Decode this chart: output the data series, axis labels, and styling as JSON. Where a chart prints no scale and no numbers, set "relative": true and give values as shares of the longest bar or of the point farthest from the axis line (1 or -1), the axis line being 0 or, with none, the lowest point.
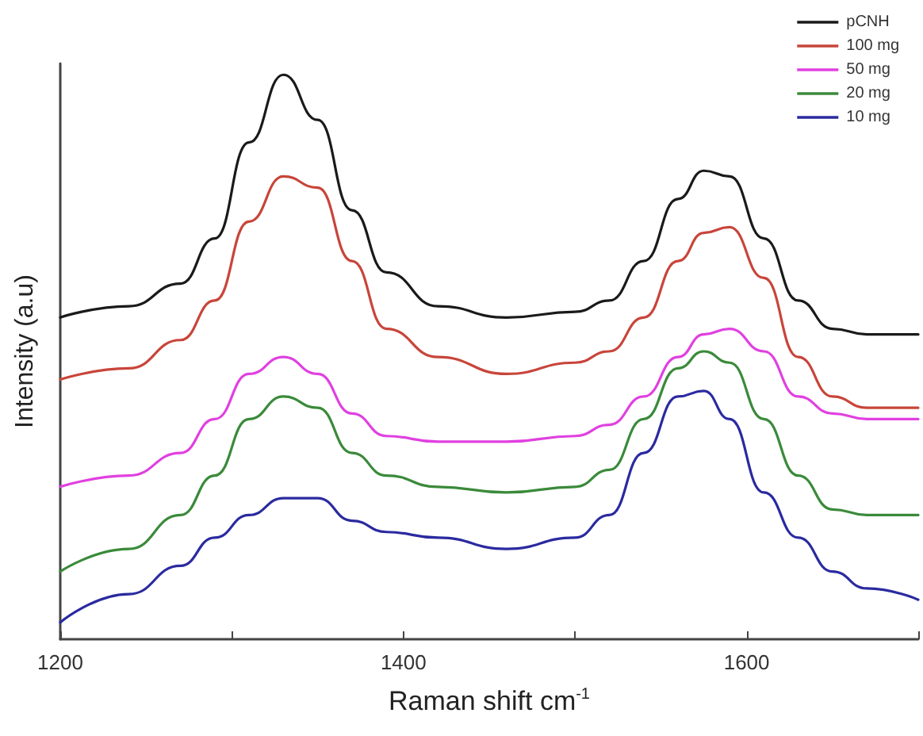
{
  "chart_data": {
    "type": "line",
    "xlabel": "Raman shift cm$^{-1}$",
    "ylabel": "Intensity (a.u)",
    "relative": true,
    "marker": "none",
    "line_style": "solid",
    "legend": "top right",
    "grid": false,
    "xlim": [
      1200,
      1700
    ],
    "xticks": [
      1200,
      {
        "value": 1300,
        "label": null
      },
      1400,
      {
        "value": 1500,
        "label": null
      },
      1600,
      {
        "value": 1700,
        "label": null
      }
    ],
    "x": [
      1200,
      1240,
      1270,
      1290,
      1310,
      1330,
      1350,
      1370,
      1390,
      1420,
      1460,
      1500,
      1520,
      1540,
      1560,
      1575,
      1590,
      1610,
      1630,
      1650,
      1670,
      1700
    ],
    "series": [
      {
        "name": "pCNH",
        "color": "#1a1a1a",
        "values": [
          0.57,
          0.59,
          0.63,
          0.71,
          0.88,
          1.0,
          0.92,
          0.76,
          0.65,
          0.59,
          0.57,
          0.58,
          0.6,
          0.67,
          0.78,
          0.83,
          0.82,
          0.71,
          0.6,
          0.55,
          0.54,
          0.54
        ]
      },
      {
        "name": "100 mg",
        "color": "#c8453a",
        "values": [
          0.46,
          0.48,
          0.53,
          0.6,
          0.74,
          0.82,
          0.8,
          0.67,
          0.55,
          0.5,
          0.47,
          0.49,
          0.51,
          0.57,
          0.67,
          0.72,
          0.73,
          0.64,
          0.5,
          0.43,
          0.41,
          0.41
        ]
      },
      {
        "name": "50 mg",
        "color": "#e040e0",
        "values": [
          0.27,
          0.29,
          0.33,
          0.39,
          0.47,
          0.5,
          0.47,
          0.4,
          0.36,
          0.35,
          0.35,
          0.36,
          0.38,
          0.43,
          0.5,
          0.54,
          0.55,
          0.51,
          0.43,
          0.4,
          0.39,
          0.39
        ]
      },
      {
        "name": "20 mg",
        "color": "#3a8a3a",
        "values": [
          0.12,
          0.16,
          0.22,
          0.29,
          0.39,
          0.43,
          0.41,
          0.33,
          0.29,
          0.27,
          0.26,
          0.27,
          0.3,
          0.39,
          0.48,
          0.51,
          0.49,
          0.39,
          0.29,
          0.23,
          0.22,
          0.22
        ]
      },
      {
        "name": "10 mg",
        "color": "#2a2aa0",
        "values": [
          0.03,
          0.08,
          0.13,
          0.18,
          0.22,
          0.25,
          0.25,
          0.21,
          0.19,
          0.18,
          0.16,
          0.18,
          0.22,
          0.33,
          0.43,
          0.44,
          0.39,
          0.26,
          0.18,
          0.12,
          0.09,
          0.07
        ]
      }
    ]
  }
}
